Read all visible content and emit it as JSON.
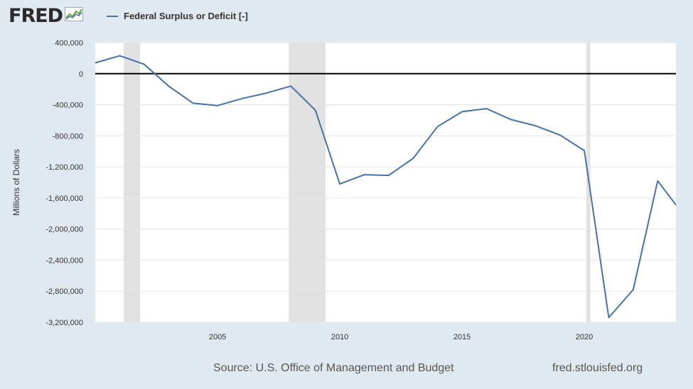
{
  "header": {
    "logo_text": "FRED",
    "logo_icon": "fred-chart-icon"
  },
  "colors": {
    "series": "#4572a7",
    "plot_background": "#ffffff",
    "page_background": "#e1e9f0",
    "recession": "#e1e1e1",
    "zero_line": "#000000"
  },
  "footer": {
    "source": "Source: U.S. Office of Management and Budget",
    "site": "fred.stlouisfed.org"
  },
  "chart_data": {
    "type": "line",
    "title": "",
    "xlabel": "",
    "ylabel": "Millions of Dollars",
    "xlim": [
      "2000-01-01",
      "2023-10-01"
    ],
    "ylim": [
      -3200000,
      400000
    ],
    "x_ticks": [
      {
        "date": "2005-01-01",
        "label": "2005"
      },
      {
        "date": "2010-01-01",
        "label": "2010"
      },
      {
        "date": "2015-01-01",
        "label": "2015"
      },
      {
        "date": "2020-01-01",
        "label": "2020"
      }
    ],
    "y_ticks": [
      {
        "value": 400000,
        "label": "400,000"
      },
      {
        "value": 0,
        "label": "0"
      },
      {
        "value": -400000,
        "label": "-400,000"
      },
      {
        "value": -800000,
        "label": "-800,000"
      },
      {
        "value": -1200000,
        "label": "-1,200,000"
      },
      {
        "value": -1600000,
        "label": "-1,600,000"
      },
      {
        "value": -2000000,
        "label": "-2,000,000"
      },
      {
        "value": -2400000,
        "label": "-2,400,000"
      },
      {
        "value": -2800000,
        "label": "-2,800,000"
      },
      {
        "value": -3200000,
        "label": "-3,200,000"
      }
    ],
    "grid": true,
    "legend": "top-left",
    "zero_line": true,
    "recessions": [
      {
        "start": "2001-03-01",
        "end": "2001-11-01"
      },
      {
        "start": "2007-12-01",
        "end": "2009-06-01"
      },
      {
        "start": "2020-02-01",
        "end": "2020-04-01"
      }
    ],
    "series": [
      {
        "name": "Federal Surplus or Deficit [-]",
        "points": [
          {
            "x": "2000-01-01",
            "y": 140000
          },
          {
            "x": "2001-01-01",
            "y": 230000
          },
          {
            "x": "2002-01-01",
            "y": 120000
          },
          {
            "x": "2003-01-01",
            "y": -160000
          },
          {
            "x": "2004-01-01",
            "y": -380000
          },
          {
            "x": "2005-01-01",
            "y": -410000
          },
          {
            "x": "2006-01-01",
            "y": -320000
          },
          {
            "x": "2007-01-01",
            "y": -250000
          },
          {
            "x": "2008-01-01",
            "y": -160000
          },
          {
            "x": "2009-01-01",
            "y": -470000
          },
          {
            "x": "2010-01-01",
            "y": -1420000
          },
          {
            "x": "2011-01-01",
            "y": -1300000
          },
          {
            "x": "2012-01-01",
            "y": -1310000
          },
          {
            "x": "2013-01-01",
            "y": -1090000
          },
          {
            "x": "2014-01-01",
            "y": -680000
          },
          {
            "x": "2015-01-01",
            "y": -490000
          },
          {
            "x": "2016-01-01",
            "y": -450000
          },
          {
            "x": "2017-01-01",
            "y": -590000
          },
          {
            "x": "2018-01-01",
            "y": -670000
          },
          {
            "x": "2019-01-01",
            "y": -790000
          },
          {
            "x": "2020-01-01",
            "y": -990000
          },
          {
            "x": "2021-01-01",
            "y": -3140000
          },
          {
            "x": "2022-01-01",
            "y": -2780000
          },
          {
            "x": "2023-01-01",
            "y": -1380000
          },
          {
            "x": "2023-10-01",
            "y": -1690000
          }
        ]
      }
    ]
  }
}
